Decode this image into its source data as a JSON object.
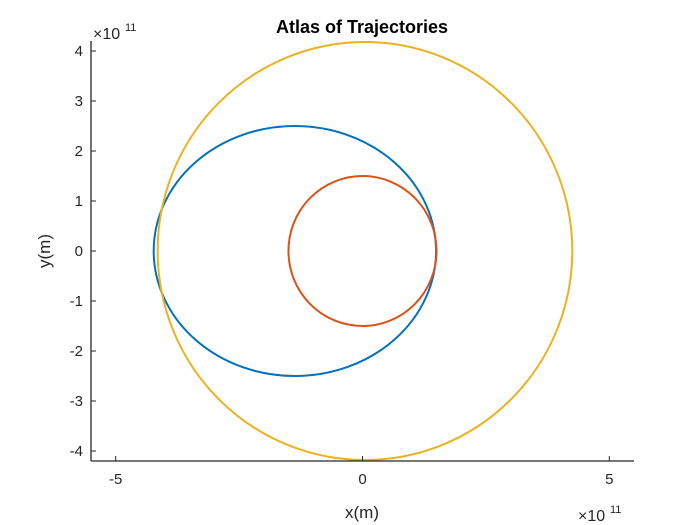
{
  "chart_data": {
    "type": "line",
    "title": "Atlas of Trajectories",
    "xlabel": "x(m)",
    "ylabel": "y(m)",
    "xlim": [
      -5.5,
      5.5
    ],
    "ylim": [
      -4.2,
      4.2
    ],
    "xticks": [
      -5,
      0,
      5
    ],
    "yticks": [
      -4,
      -3,
      -2,
      -1,
      0,
      1,
      2,
      3,
      4
    ],
    "x_tick_labels": [
      "-5",
      "0",
      "5"
    ],
    "y_tick_labels": [
      "-4",
      "-3",
      "-2",
      "-1",
      "0",
      "1",
      "2",
      "3",
      "4"
    ],
    "axis_scale_label": {
      "base": "×10",
      "exponent": "11"
    },
    "grid": false,
    "series": [
      {
        "shape": "ellipse",
        "center": [
          -1.37,
          0
        ],
        "radii": [
          2.86,
          2.5
        ],
        "color": "#0072BD"
      },
      {
        "shape": "circle",
        "center": [
          0,
          0
        ],
        "radii": [
          1.5,
          1.5
        ],
        "color": "#D95319"
      },
      {
        "shape": "ellipse",
        "center": [
          0.05,
          0
        ],
        "radii": [
          4.2,
          4.18
        ],
        "color": "#EDB120"
      }
    ]
  }
}
